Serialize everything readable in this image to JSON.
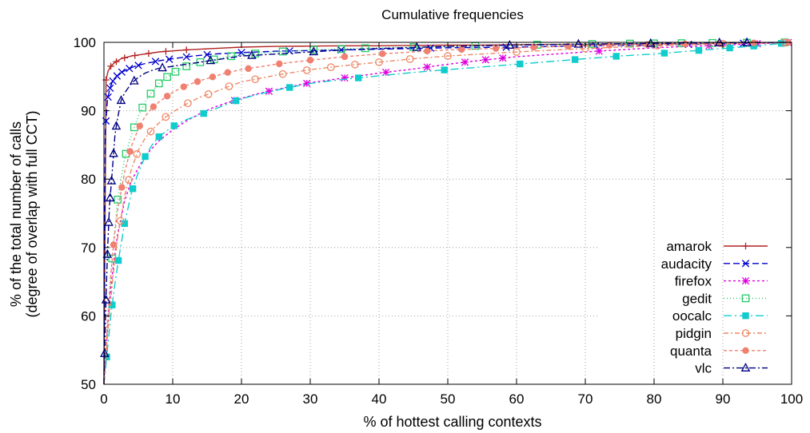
{
  "chart_data": {
    "type": "line",
    "title": "Cumulative frequencies",
    "xlabel": "% of hottest calling contexts",
    "ylabel_line1": "% of the total number of calls",
    "ylabel_line2": "(degree of overlap with full CCT)",
    "xlim": [
      0,
      100
    ],
    "ylim": [
      50,
      100
    ],
    "x_ticks": [
      "0",
      "10",
      "20",
      "30",
      "40",
      "50",
      "60",
      "70",
      "80",
      "90",
      "100"
    ],
    "y_ticks": [
      "50",
      "60",
      "70",
      "80",
      "90",
      "100"
    ],
    "grid": true,
    "grid_style": "dotted",
    "legend_position": "bottom-right",
    "series": [
      {
        "name": "amarok",
        "color": "#b22222",
        "marker": "plus",
        "dash": "",
        "x": [
          0,
          0.3,
          0.6,
          1.0,
          1.5,
          2.5,
          4,
          6,
          8,
          12,
          16,
          20,
          25,
          30,
          35,
          40,
          45,
          50,
          55,
          60,
          65,
          70,
          75,
          80,
          85,
          90,
          95,
          100
        ],
        "y": [
          50,
          94.5,
          95.8,
          96.5,
          97,
          97.6,
          98,
          98.3,
          98.6,
          98.9,
          99.1,
          99.3,
          99.4,
          99.45,
          99.5,
          99.5,
          99.55,
          99.6,
          99.6,
          99.65,
          99.7,
          99.7,
          99.75,
          99.8,
          99.8,
          99.85,
          99.9,
          100
        ],
        "marker_x": [
          0.3,
          1.0,
          1.8,
          3,
          4.5,
          6.5,
          9,
          12
        ]
      },
      {
        "name": "audacity",
        "color": "#0000cc",
        "marker": "cross",
        "dash": "8,4",
        "x": [
          0,
          0.2,
          0.5,
          0.8,
          1.2,
          1.8,
          2.5,
          3.5,
          4.5,
          6,
          8,
          10,
          13,
          16,
          20,
          25,
          30,
          40,
          50,
          60,
          70,
          80,
          90,
          100
        ],
        "y": [
          50,
          87,
          91.5,
          93,
          94.2,
          95,
          95.6,
          96.1,
          96.5,
          96.9,
          97.3,
          97.6,
          98,
          98.3,
          98.5,
          98.7,
          98.8,
          99.0,
          99.2,
          99.3,
          99.5,
          99.6,
          99.8,
          100
        ],
        "marker_x": [
          0.3,
          0.6,
          0.9,
          1.3,
          1.9,
          2.6,
          3.7,
          5,
          7.5,
          9.5,
          12,
          15,
          20,
          27,
          34.5,
          47.5,
          58.5,
          71.5,
          85,
          93
        ]
      },
      {
        "name": "firefox",
        "color": "#dd00dd",
        "marker": "star",
        "dash": "3,3",
        "x": [
          0,
          0.5,
          1,
          1.5,
          2,
          3,
          4,
          6,
          8,
          10,
          12,
          14,
          16,
          18,
          19,
          22,
          26,
          30,
          35,
          40,
          45,
          50,
          55,
          60,
          70,
          80,
          90,
          100
        ],
        "y": [
          50,
          58,
          64,
          68.5,
          72,
          76.8,
          79.8,
          83.4,
          85.6,
          87.2,
          88.5,
          89.6,
          90.5,
          91.2,
          91.5,
          92.4,
          93.3,
          94.1,
          94.8,
          95.5,
          96.1,
          96.8,
          97.4,
          97.9,
          98.6,
          99.2,
          99.6,
          100
        ],
        "marker_x": [
          19,
          24,
          29.5,
          35,
          41,
          47,
          52.5,
          55.5,
          58,
          72,
          88,
          95,
          99.5
        ]
      },
      {
        "name": "gedit",
        "color": "#22cc66",
        "marker": "square-open",
        "dash": "1,3",
        "x": [
          0,
          0.5,
          1,
          1.5,
          2,
          3,
          4,
          5,
          6,
          7,
          8,
          9,
          10,
          12,
          14,
          16,
          18,
          20,
          25,
          30,
          40,
          50,
          60,
          70,
          80,
          90,
          100
        ],
        "y": [
          50,
          58.5,
          66,
          72,
          77,
          83,
          86.5,
          89.2,
          91.3,
          92.8,
          94,
          94.8,
          95.5,
          96.5,
          97.1,
          97.5,
          97.9,
          98.2,
          98.6,
          98.9,
          99.2,
          99.4,
          99.6,
          99.75,
          99.85,
          99.92,
          100
        ],
        "marker_x": [
          1.2,
          2.0,
          3.2,
          4.4,
          5.6,
          6.8,
          8,
          9.2,
          10.4,
          12,
          14,
          16,
          18.5,
          22,
          26,
          30.5,
          34.5,
          38,
          45,
          54,
          63,
          71,
          76.5,
          80,
          84,
          88.5,
          93.5,
          99
        ]
      },
      {
        "name": "oocalc",
        "color": "#11cccc",
        "marker": "square",
        "dash": "10,4,2,4",
        "x": [
          0,
          0.5,
          1,
          1.5,
          2,
          3,
          4,
          5,
          6,
          7,
          8,
          10,
          12,
          14,
          16,
          19,
          22,
          26,
          30,
          35,
          40,
          45,
          50,
          55,
          60,
          65,
          70,
          75,
          80,
          85,
          90,
          95,
          100
        ],
        "y": [
          50,
          55,
          60,
          64,
          67.5,
          73.5,
          78,
          81,
          83.3,
          85,
          86.2,
          87.7,
          88.7,
          89.4,
          90.2,
          91.4,
          92.3,
          93.2,
          94,
          94.6,
          95.1,
          95.6,
          96,
          96.4,
          96.8,
          97.2,
          97.6,
          98.0,
          98.3,
          98.7,
          99.1,
          99.5,
          100
        ],
        "marker_x": [
          0.4,
          1.2,
          2.1,
          3.0,
          4.2,
          6.0,
          8.0,
          10.2,
          14.5,
          19.2,
          27,
          37,
          49.5,
          60.5,
          68.5,
          74.5,
          81.5,
          86.5,
          91,
          94.5,
          98.5
        ]
      },
      {
        "name": "pidgin",
        "color": "#ee8866",
        "marker": "circle-open",
        "dash": "6,3,2,3",
        "x": [
          0,
          0.5,
          1,
          1.5,
          2,
          3,
          4,
          5,
          6,
          7,
          8,
          9,
          10,
          12,
          14,
          16,
          18,
          20,
          25,
          30,
          35,
          40,
          45,
          50,
          60,
          70,
          80,
          90,
          100
        ],
        "y": [
          50,
          57,
          62.5,
          67.5,
          71.5,
          77.5,
          81.5,
          84.2,
          86,
          87.2,
          88.2,
          89.1,
          89.8,
          91,
          92,
          92.7,
          93.5,
          94.2,
          95.2,
          96,
          96.6,
          97.1,
          97.6,
          98,
          98.6,
          99.1,
          99.5,
          99.8,
          100
        ],
        "marker_x": [
          2.4,
          3.6,
          4.8,
          6.8,
          9.0,
          12.2,
          15.2,
          18.2,
          22.0,
          26.0,
          29.5,
          33.0,
          36.5,
          40.0,
          44.5,
          50.0,
          60.0,
          70.0,
          80.5,
          90.0,
          99.0
        ]
      },
      {
        "name": "quanta",
        "color": "#f08070",
        "marker": "circle",
        "dash": "4,3",
        "x": [
          0,
          0.5,
          1,
          1.5,
          2,
          3,
          4,
          5,
          6,
          7,
          8,
          10,
          12,
          14,
          16,
          18,
          20,
          25,
          30,
          35,
          40,
          45,
          50,
          60,
          70,
          80,
          90,
          100
        ],
        "y": [
          50,
          59,
          66,
          71.5,
          75.5,
          81,
          84.8,
          87.4,
          89.2,
          90.4,
          91.3,
          92.7,
          93.7,
          94.4,
          95,
          95.6,
          96,
          96.8,
          97.4,
          97.9,
          98.3,
          98.6,
          98.9,
          99.2,
          99.5,
          99.7,
          99.85,
          100
        ],
        "marker_x": [
          1.4,
          2.6,
          3.8,
          5.2,
          7.2,
          9.2,
          11.6,
          13.6,
          15.8,
          18.0,
          21.0,
          25.5,
          30.0,
          35.0,
          40.5,
          47.0,
          52.0,
          57.0,
          62.5,
          67.5,
          73.5,
          79.0,
          84.5,
          89.5,
          94.5,
          99.5
        ]
      },
      {
        "name": "vlc",
        "color": "#000080",
        "marker": "triangle-open",
        "dash": "8,3,2,3",
        "x": [
          0,
          0.2,
          0.5,
          0.8,
          1.2,
          1.6,
          2,
          2.5,
          3,
          4,
          5,
          6,
          7,
          8,
          10,
          12,
          14,
          16,
          18,
          20,
          25,
          30,
          35,
          40,
          50,
          60,
          70,
          80,
          90,
          100
        ],
        "y": [
          50,
          59,
          69,
          76,
          81,
          86.5,
          89,
          91.5,
          92.6,
          94,
          94.9,
          95.5,
          95.9,
          96.2,
          96.5,
          96.8,
          97.1,
          97.4,
          97.7,
          98,
          98.3,
          98.6,
          98.9,
          99.1,
          99.4,
          99.6,
          99.75,
          99.85,
          99.95,
          100
        ],
        "marker_x": [
          0.1,
          0.3,
          0.5,
          0.7,
          0.9,
          1.1,
          1.4,
          1.8,
          2.5,
          4.4,
          8.5,
          15.5,
          21.5,
          30.5,
          45.5,
          59.0,
          69.0,
          79.5,
          89.5,
          93.5
        ]
      }
    ]
  }
}
